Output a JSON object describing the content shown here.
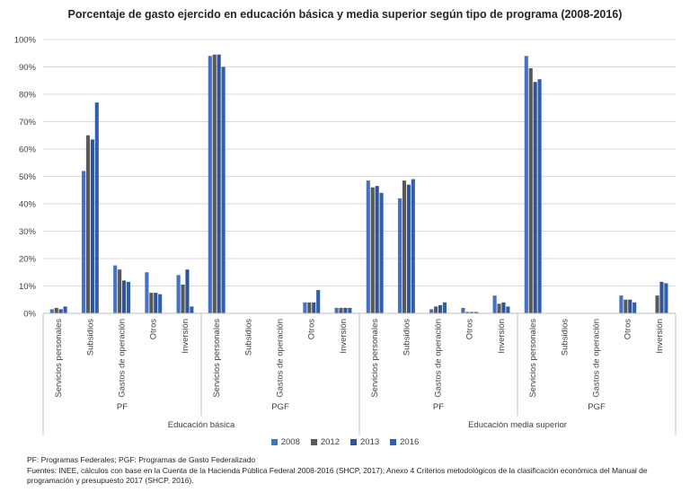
{
  "chart_data": {
    "type": "bar",
    "title": "Porcentaje de gasto ejercido en educación básica y media superior según tipo de programa (2008-2016)",
    "xlabel": "",
    "ylabel": "",
    "ylim": [
      0,
      100
    ],
    "y_ticks": [
      "0%",
      "10%",
      "20%",
      "30%",
      "40%",
      "50%",
      "60%",
      "70%",
      "80%",
      "90%",
      "100%"
    ],
    "grid": true,
    "legend_position": "bottom",
    "categories": [
      "Servicios personales",
      "Subsidios",
      "Gastos de operación",
      "Otros",
      "Inversión",
      "Servicios personales",
      "Subsidios",
      "Gastos de operación",
      "Otros",
      "Inversión",
      "Servicios personales",
      "Subsidios",
      "Gastos de operación",
      "Otros",
      "Inversión",
      "Servicios personales",
      "Subsidios",
      "Gastos de operación",
      "Otros",
      "Inversión"
    ],
    "program_groups": [
      {
        "label": "PF",
        "span": 5
      },
      {
        "label": "PGF",
        "span": 5
      },
      {
        "label": "PF",
        "span": 5
      },
      {
        "label": "PGF",
        "span": 5
      }
    ],
    "level_groups": [
      {
        "label": "Educación básica",
        "span": 10
      },
      {
        "label": "Educación media superior",
        "span": 10
      }
    ],
    "series": [
      {
        "name": "2008",
        "color": "#4472c4",
        "values": [
          1.5,
          52,
          17.5,
          15,
          14,
          94,
          0,
          0,
          4,
          2,
          48.5,
          42,
          1.5,
          2,
          6.5,
          94,
          0,
          0,
          6.5,
          0
        ]
      },
      {
        "name": "2012",
        "color": "#595959",
        "values": [
          2,
          65,
          16,
          7.5,
          10.5,
          94.5,
          0,
          0,
          4,
          2,
          46,
          48.5,
          2.5,
          0.5,
          3.5,
          89.5,
          0,
          0,
          5,
          6.5
        ]
      },
      {
        "name": "2013",
        "color": "#2f5597",
        "values": [
          1.5,
          63.5,
          12,
          7.5,
          16,
          94.5,
          0,
          0,
          4,
          2,
          46.5,
          47,
          3,
          0.5,
          4,
          84.5,
          0,
          0,
          5,
          11.5
        ]
      },
      {
        "name": "2016",
        "color": "#2e5fb0",
        "values": [
          2.5,
          77,
          11.5,
          7,
          2.5,
          90,
          0,
          0,
          8.5,
          2,
          44,
          49,
          4,
          0.5,
          2.5,
          85.5,
          0,
          0,
          4,
          11
        ]
      }
    ]
  },
  "notes": {
    "line1": "PF: Programas Federales; PGF: Programas de Gasto Federalizado",
    "line2": "Fuentes: INEE, cálculos con base en la Cuenta de la Hacienda Pública Federal 2008-2016 (SHCP, 2017); Anexo 4 Criterios metodológicos de la clasificación económica del Manual de",
    "line3": "programación y presupuesto 2017 (SHCP, 2016)."
  }
}
